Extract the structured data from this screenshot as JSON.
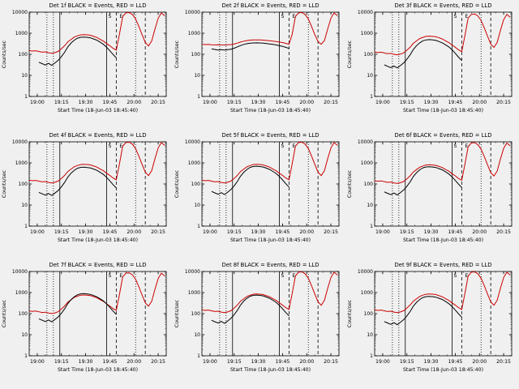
{
  "page": {
    "background": "#f0f0f0"
  },
  "chart_data": {
    "type": "line",
    "ylabel": "Counts/sec",
    "xlabel": "Start Time (18-Jun-03 18:45:40)",
    "grid": false,
    "y_scale": "log",
    "ylim": [
      1,
      10000
    ],
    "y_tick_labels": [
      "1",
      "10",
      "100",
      "1000",
      "10000"
    ],
    "xlim": [
      0,
      85
    ],
    "x_ticks": [
      {
        "t": 5,
        "label": "19:00"
      },
      {
        "t": 20,
        "label": "19:15"
      },
      {
        "t": 35,
        "label": "19:30"
      },
      {
        "t": 50,
        "label": "19:45"
      },
      {
        "t": 65,
        "label": "20:00"
      },
      {
        "t": 80,
        "label": "20:15"
      }
    ],
    "ref_lines": {
      "dotted": [
        11,
        15,
        66
      ],
      "solid": [
        19,
        48
      ],
      "dashed": [
        54,
        72
      ]
    },
    "annotations": [
      {
        "label": "S",
        "t": 50
      },
      {
        "label": "E",
        "t": 57
      }
    ],
    "colors": {
      "events": "#000000",
      "lld": "#cc0000"
    },
    "legend": {
      "black": "Events",
      "red": "LLD"
    },
    "x": [
      0,
      2,
      4,
      6,
      8,
      10,
      12,
      14,
      16,
      18,
      20,
      22,
      24,
      26,
      28,
      30,
      32,
      34,
      36,
      38,
      40,
      42,
      44,
      46,
      48,
      50,
      52,
      54,
      56,
      58,
      60,
      62,
      64,
      66,
      68,
      70,
      72,
      74,
      76,
      78,
      80,
      82,
      84
    ],
    "base": {
      "red": [
        150,
        142,
        148,
        136,
        126,
        130,
        118,
        112,
        120,
        138,
        185,
        255,
        390,
        510,
        660,
        750,
        840,
        855,
        835,
        800,
        710,
        630,
        510,
        425,
        325,
        255,
        192,
        158,
        900,
        6200,
        9300,
        9600,
        7800,
        4800,
        2100,
        850,
        360,
        250,
        430,
        1600,
        5200,
        9200,
        6800
      ],
      "black": [
        null,
        null,
        null,
        42,
        36,
        31,
        37,
        30,
        39,
        52,
        78,
        125,
        225,
        345,
        470,
        585,
        645,
        662,
        638,
        605,
        535,
        465,
        375,
        298,
        218,
        148,
        98,
        68,
        null,
        null,
        null,
        null,
        null,
        null,
        null,
        null,
        null,
        null,
        null,
        null,
        null,
        null,
        null
      ]
    },
    "plots": [
      {
        "detector": "1f",
        "title": "Det 1f BLACK = Events, RED = LLD",
        "black_mult": 1.0,
        "red_mult": 1.0
      },
      {
        "detector": "2f",
        "title": "Det 2f BLACK = Events, RED = LLD",
        "red": [
          300,
          290,
          295,
          285,
          280,
          285,
          280,
          278,
          282,
          290,
          310,
          340,
          380,
          420,
          450,
          470,
          480,
          485,
          480,
          470,
          455,
          440,
          420,
          400,
          380,
          360,
          330,
          300,
          900,
          6200,
          9300,
          9600,
          7800,
          4800,
          2100,
          850,
          400,
          300,
          450,
          1600,
          5200,
          9200,
          6800
        ],
        "black": [
          null,
          null,
          null,
          180,
          170,
          160,
          165,
          158,
          165,
          175,
          195,
          225,
          260,
          295,
          320,
          335,
          345,
          350,
          345,
          338,
          325,
          310,
          295,
          278,
          258,
          238,
          215,
          190,
          null,
          null,
          null,
          null,
          null,
          null,
          null,
          null,
          null,
          null,
          null,
          null,
          null,
          null,
          null
        ]
      },
      {
        "detector": "3f",
        "title": "Det 3f BLACK = Events, RED = LLD",
        "black_mult": 0.75,
        "red_mult": 0.85
      },
      {
        "detector": "4f",
        "title": "Det 4f BLACK = Events, RED = LLD",
        "black_mult": 0.95,
        "red_mult": 1.0
      },
      {
        "detector": "5f",
        "title": "Det 5f BLACK = Events, RED = LLD",
        "black_mult": 1.05,
        "red_mult": 1.0
      },
      {
        "detector": "6f",
        "title": "Det 6f BLACK = Events, RED = LLD",
        "black_mult": 1.0,
        "red_mult": 0.95
      },
      {
        "detector": "7f",
        "title": "Det 7f BLACK = Events, RED = LLD",
        "black_mult": 1.35,
        "red_mult": 0.9
      },
      {
        "detector": "8f",
        "title": "Det 8f BLACK = Events, RED = LLD",
        "black_mult": 1.15,
        "red_mult": 1.0
      },
      {
        "detector": "9f",
        "title": "Det 9f BLACK = Events, RED = LLD",
        "black_mult": 1.0,
        "red_mult": 1.0
      }
    ]
  }
}
